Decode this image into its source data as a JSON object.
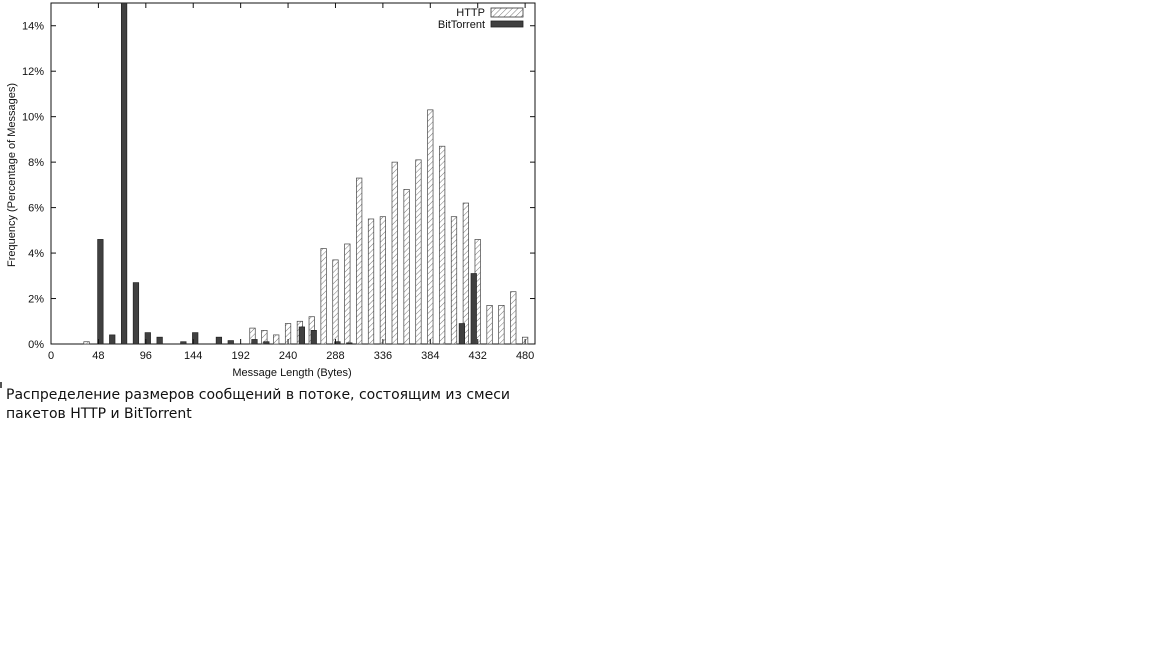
{
  "chart_data": {
    "type": "bar",
    "xlabel": "Message Length (Bytes)",
    "ylabel": "Frequency (Percentage of Messages)",
    "xlim": [
      0,
      490
    ],
    "ylim": [
      0,
      15
    ],
    "x_ticks": [
      0,
      48,
      96,
      144,
      192,
      240,
      288,
      336,
      384,
      432,
      480
    ],
    "y_ticks": [
      0,
      2,
      4,
      6,
      8,
      10,
      12,
      14
    ],
    "y_tick_labels": [
      "0%",
      "2%",
      "4%",
      "6%",
      "8%",
      "10%",
      "12%",
      "14%"
    ],
    "legend_position": "top-right",
    "grid": false,
    "series": [
      {
        "name": "HTTP",
        "fill": "hatched",
        "x": [
          36,
          204,
          216,
          228,
          240,
          252,
          264,
          276,
          288,
          300,
          312,
          324,
          336,
          348,
          360,
          372,
          384,
          396,
          408,
          420,
          432,
          444,
          456,
          468,
          480
        ],
        "values": [
          0.1,
          0.7,
          0.6,
          0.4,
          0.9,
          1.0,
          1.2,
          4.2,
          3.7,
          4.4,
          7.3,
          5.5,
          5.6,
          8.0,
          6.8,
          8.1,
          10.3,
          8.7,
          5.6,
          6.2,
          4.6,
          1.7,
          1.7,
          2.3,
          0.3
        ]
      },
      {
        "name": "BitTorrent",
        "fill": "solid",
        "x": [
          50,
          62,
          74,
          86,
          98,
          110,
          134,
          146,
          170,
          182,
          206,
          218,
          254,
          266,
          290,
          302,
          416,
          428
        ],
        "values": [
          4.6,
          0.4,
          15.0,
          2.7,
          0.5,
          0.3,
          0.1,
          0.5,
          0.3,
          0.15,
          0.2,
          0.1,
          0.75,
          0.6,
          0.1,
          0.05,
          0.9,
          3.1
        ]
      }
    ]
  },
  "caption": {
    "text": "Распределение размеров сообщений в потоке, состоящим из смеси пакетов HTTP и BitTorrent"
  }
}
